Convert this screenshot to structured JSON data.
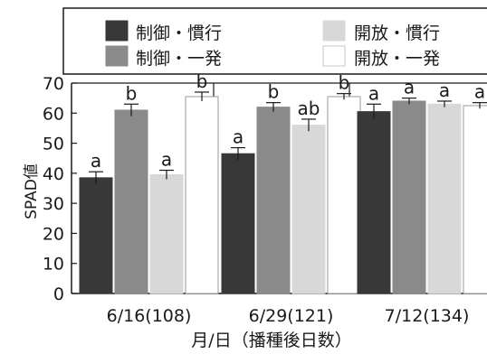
{
  "chart_data": {
    "type": "bar",
    "ylabel": "SPAD値",
    "xlabel": "月/日（播種後日数）",
    "ylim": [
      0,
      70
    ],
    "yticks": [
      0,
      10,
      20,
      30,
      40,
      50,
      60,
      70
    ],
    "categories": [
      "6/16(108)",
      "6/29(121)",
      "7/12(134)"
    ],
    "series": [
      {
        "name": "制御・慣行",
        "color": "#383838",
        "values": [
          38.5,
          46.5,
          60.5
        ],
        "errors": [
          2.0,
          2.0,
          2.5
        ],
        "letters": [
          "a",
          "a",
          "a"
        ]
      },
      {
        "name": "制御・一発",
        "color": "#8a8a8a",
        "values": [
          61,
          62,
          64
        ],
        "errors": [
          2.0,
          1.5,
          1.0
        ],
        "letters": [
          "b",
          "b",
          "a"
        ]
      },
      {
        "name": "開放・慣行",
        "color": "#d8d8d8",
        "values": [
          39.5,
          56,
          63
        ],
        "errors": [
          1.5,
          2.0,
          1.0
        ],
        "letters": [
          "a",
          "ab",
          "a"
        ]
      },
      {
        "name": "開放・一発",
        "color": "#ffffff",
        "values": [
          65.5,
          65.5,
          62.5
        ],
        "errors": [
          1.5,
          1.0,
          1.0
        ],
        "letters": [
          "b",
          "b",
          "a"
        ]
      }
    ],
    "legend_position": "top",
    "grid": false
  }
}
